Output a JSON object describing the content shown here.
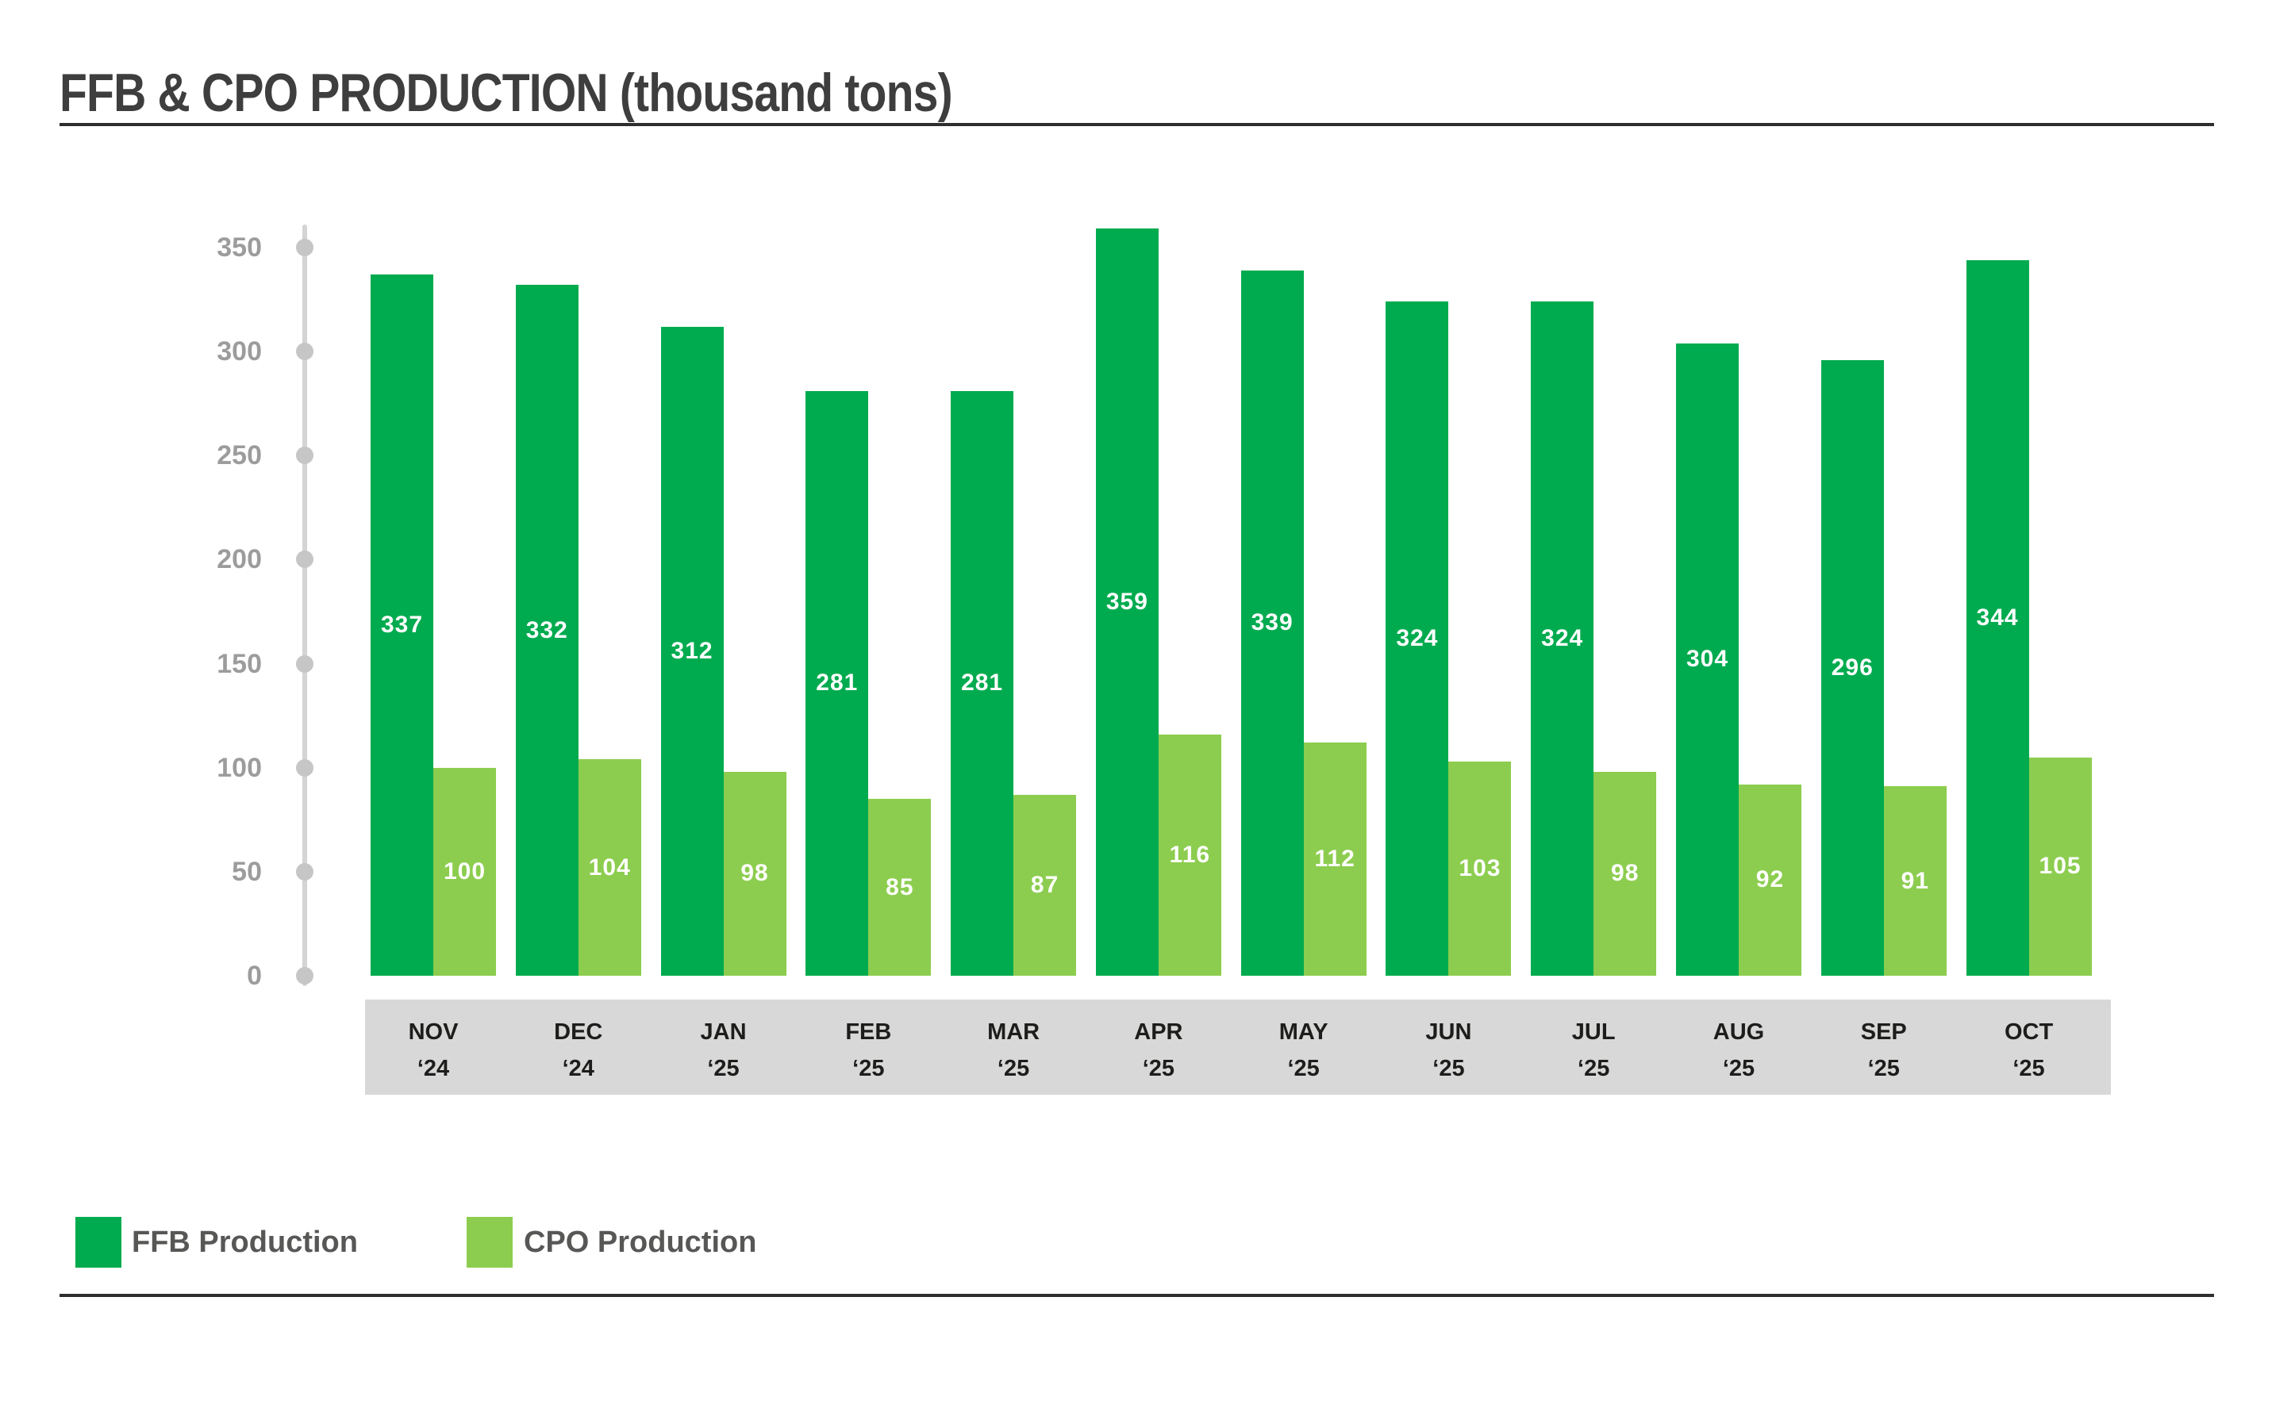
{
  "page": {
    "title": "FFB & CPO PRODUCTION (thousand tons)"
  },
  "legend": {
    "items": [
      {
        "label": "FFB Production",
        "color": "#00ab4f"
      },
      {
        "label": "CPO Production",
        "color": "#8ccd4f"
      }
    ]
  },
  "chart_data": {
    "type": "bar",
    "title": "FFB & CPO PRODUCTION (thousand tons)",
    "unit": "thousand tons",
    "categories": [
      "NOV ‘24",
      "DEC ‘24",
      "JAN ‘25",
      "FEB ‘25",
      "MAR ‘25",
      "APR ‘25",
      "MAY ‘25",
      "JUN ‘25",
      "JUL ‘25",
      "AUG ‘25",
      "SEP ‘25",
      "OCT ‘25"
    ],
    "series": [
      {
        "name": "FFB Production",
        "color": "#00ab4f",
        "values": [
          337,
          332,
          312,
          281,
          281,
          359,
          339,
          324,
          324,
          304,
          296,
          344
        ]
      },
      {
        "name": "CPO Production",
        "color": "#8ccd4f",
        "values": [
          100,
          104,
          98,
          85,
          87,
          116,
          112,
          103,
          98,
          92,
          91,
          105
        ]
      }
    ],
    "ylim": [
      0,
      350
    ],
    "yticks": [
      0,
      50,
      100,
      150,
      200,
      250,
      300,
      350
    ],
    "grid": false,
    "legend_position": "bottom-left",
    "value_labels": "inside-center",
    "colors": {
      "axis_line": "#d4d4d4",
      "axis_tick_dot": "#c6c6c6",
      "axis_label_text": "#9c9c9c",
      "month_band": "#d8d8d8",
      "month_text": "#1d1d1b",
      "bar_value_text": "#ffffff"
    }
  }
}
